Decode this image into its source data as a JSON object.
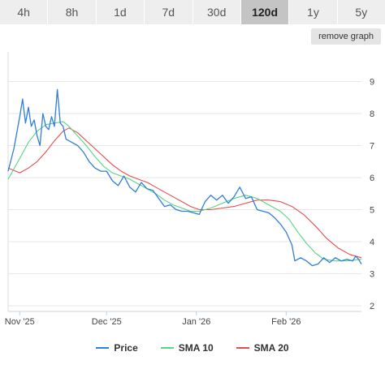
{
  "tabs": [
    {
      "label": "4h",
      "active": false
    },
    {
      "label": "8h",
      "active": false
    },
    {
      "label": "1d",
      "active": false
    },
    {
      "label": "7d",
      "active": false
    },
    {
      "label": "30d",
      "active": false
    },
    {
      "label": "120d",
      "active": true
    },
    {
      "label": "1y",
      "active": false
    },
    {
      "label": "5y",
      "active": false
    }
  ],
  "remove_button_label": "remove graph",
  "legend": [
    {
      "name": "Price",
      "color": "#2f7ed8"
    },
    {
      "name": "SMA 10",
      "color": "#59d486"
    },
    {
      "name": "SMA 20",
      "color": "#e84b4b"
    }
  ],
  "chart_data": {
    "type": "line",
    "title": "",
    "xlabel": "",
    "ylabel": "",
    "x_ticks": [
      "Nov '25",
      "Dec '25",
      "Jan '26",
      "Feb '26"
    ],
    "y_ticks": [
      2,
      3,
      4,
      5,
      6,
      7,
      8,
      9
    ],
    "ylim": [
      2,
      9
    ],
    "xlim": [
      "2025-10-28",
      "2026-02-27"
    ],
    "grid": true,
    "y_axis_side": "right",
    "legend_position": "bottom",
    "series": [
      {
        "name": "Price",
        "color": "#2f7ed8",
        "points": [
          [
            "2025-10-28",
            6.2
          ],
          [
            "2025-10-30",
            6.9
          ],
          [
            "2025-11-01",
            7.9
          ],
          [
            "2025-11-02",
            8.45
          ],
          [
            "2025-11-03",
            7.7
          ],
          [
            "2025-11-04",
            8.2
          ],
          [
            "2025-11-05",
            7.6
          ],
          [
            "2025-11-06",
            7.8
          ],
          [
            "2025-11-07",
            7.3
          ],
          [
            "2025-11-08",
            7.0
          ],
          [
            "2025-11-09",
            8.0
          ],
          [
            "2025-11-10",
            7.6
          ],
          [
            "2025-11-11",
            7.5
          ],
          [
            "2025-11-12",
            7.9
          ],
          [
            "2025-11-13",
            7.6
          ],
          [
            "2025-11-14",
            8.75
          ],
          [
            "2025-11-15",
            7.7
          ],
          [
            "2025-11-16",
            7.6
          ],
          [
            "2025-11-17",
            7.2
          ],
          [
            "2025-11-19",
            7.1
          ],
          [
            "2025-11-21",
            7.0
          ],
          [
            "2025-11-23",
            6.8
          ],
          [
            "2025-11-25",
            6.5
          ],
          [
            "2025-11-27",
            6.3
          ],
          [
            "2025-11-29",
            6.2
          ],
          [
            "2025-12-01",
            6.2
          ],
          [
            "2025-12-03",
            5.9
          ],
          [
            "2025-12-05",
            5.75
          ],
          [
            "2025-12-07",
            6.05
          ],
          [
            "2025-12-09",
            5.7
          ],
          [
            "2025-12-11",
            5.55
          ],
          [
            "2025-12-13",
            5.85
          ],
          [
            "2025-12-15",
            5.65
          ],
          [
            "2025-12-17",
            5.6
          ],
          [
            "2025-12-19",
            5.35
          ],
          [
            "2025-12-21",
            5.1
          ],
          [
            "2025-12-23",
            5.15
          ],
          [
            "2025-12-25",
            5.0
          ],
          [
            "2025-12-27",
            4.95
          ],
          [
            "2025-12-29",
            4.95
          ],
          [
            "2025-12-31",
            4.9
          ],
          [
            "2026-01-02",
            4.85
          ],
          [
            "2026-01-04",
            5.25
          ],
          [
            "2026-01-06",
            5.45
          ],
          [
            "2026-01-08",
            5.3
          ],
          [
            "2026-01-10",
            5.45
          ],
          [
            "2026-01-12",
            5.2
          ],
          [
            "2026-01-14",
            5.4
          ],
          [
            "2026-01-16",
            5.7
          ],
          [
            "2026-01-18",
            5.35
          ],
          [
            "2026-01-20",
            5.4
          ],
          [
            "2026-01-22",
            5.0
          ],
          [
            "2026-01-24",
            4.95
          ],
          [
            "2026-01-26",
            4.9
          ],
          [
            "2026-01-28",
            4.75
          ],
          [
            "2026-01-30",
            4.55
          ],
          [
            "2026-02-01",
            4.3
          ],
          [
            "2026-02-03",
            3.9
          ],
          [
            "2026-02-04",
            3.4
          ],
          [
            "2026-02-06",
            3.5
          ],
          [
            "2026-02-08",
            3.4
          ],
          [
            "2026-02-10",
            3.25
          ],
          [
            "2026-02-12",
            3.3
          ],
          [
            "2026-02-14",
            3.5
          ],
          [
            "2026-02-16",
            3.35
          ],
          [
            "2026-02-18",
            3.5
          ],
          [
            "2026-02-20",
            3.4
          ],
          [
            "2026-02-22",
            3.45
          ],
          [
            "2026-02-24",
            3.4
          ],
          [
            "2026-02-25",
            3.55
          ],
          [
            "2026-02-26",
            3.45
          ],
          [
            "2026-02-27",
            3.3
          ]
        ]
      },
      {
        "name": "SMA 10",
        "color": "#59d486",
        "points": [
          [
            "2025-10-28",
            5.95
          ],
          [
            "2025-11-01",
            6.6
          ],
          [
            "2025-11-04",
            7.1
          ],
          [
            "2025-11-07",
            7.45
          ],
          [
            "2025-11-10",
            7.65
          ],
          [
            "2025-11-13",
            7.7
          ],
          [
            "2025-11-16",
            7.75
          ],
          [
            "2025-11-18",
            7.6
          ],
          [
            "2025-11-21",
            7.3
          ],
          [
            "2025-11-24",
            7.0
          ],
          [
            "2025-11-27",
            6.65
          ],
          [
            "2025-11-30",
            6.35
          ],
          [
            "2025-12-03",
            6.15
          ],
          [
            "2025-12-06",
            6.05
          ],
          [
            "2025-12-09",
            5.95
          ],
          [
            "2025-12-12",
            5.8
          ],
          [
            "2025-12-15",
            5.65
          ],
          [
            "2025-12-18",
            5.5
          ],
          [
            "2025-12-21",
            5.3
          ],
          [
            "2025-12-24",
            5.15
          ],
          [
            "2025-12-27",
            5.05
          ],
          [
            "2025-12-30",
            4.95
          ],
          [
            "2026-01-02",
            4.95
          ],
          [
            "2026-01-06",
            5.05
          ],
          [
            "2026-01-10",
            5.2
          ],
          [
            "2026-01-14",
            5.35
          ],
          [
            "2026-01-18",
            5.45
          ],
          [
            "2026-01-22",
            5.35
          ],
          [
            "2026-01-26",
            5.15
          ],
          [
            "2026-01-30",
            4.95
          ],
          [
            "2026-02-02",
            4.7
          ],
          [
            "2026-02-05",
            4.3
          ],
          [
            "2026-02-08",
            3.95
          ],
          [
            "2026-02-11",
            3.65
          ],
          [
            "2026-02-14",
            3.45
          ],
          [
            "2026-02-18",
            3.4
          ],
          [
            "2026-02-22",
            3.4
          ],
          [
            "2026-02-27",
            3.45
          ]
        ]
      },
      {
        "name": "SMA 20",
        "color": "#e84b4b",
        "points": [
          [
            "2025-10-28",
            6.3
          ],
          [
            "2025-11-01",
            6.15
          ],
          [
            "2025-11-04",
            6.3
          ],
          [
            "2025-11-07",
            6.5
          ],
          [
            "2025-11-10",
            6.8
          ],
          [
            "2025-11-13",
            7.15
          ],
          [
            "2025-11-16",
            7.45
          ],
          [
            "2025-11-18",
            7.55
          ],
          [
            "2025-11-21",
            7.4
          ],
          [
            "2025-11-24",
            7.15
          ],
          [
            "2025-11-27",
            6.9
          ],
          [
            "2025-11-30",
            6.65
          ],
          [
            "2025-12-03",
            6.4
          ],
          [
            "2025-12-06",
            6.2
          ],
          [
            "2025-12-09",
            6.05
          ],
          [
            "2025-12-12",
            5.95
          ],
          [
            "2025-12-15",
            5.85
          ],
          [
            "2025-12-18",
            5.7
          ],
          [
            "2025-12-21",
            5.55
          ],
          [
            "2025-12-24",
            5.4
          ],
          [
            "2025-12-27",
            5.25
          ],
          [
            "2025-12-30",
            5.1
          ],
          [
            "2026-01-02",
            5.0
          ],
          [
            "2026-01-06",
            5.0
          ],
          [
            "2026-01-10",
            5.05
          ],
          [
            "2026-01-14",
            5.1
          ],
          [
            "2026-01-18",
            5.2
          ],
          [
            "2026-01-22",
            5.3
          ],
          [
            "2026-01-26",
            5.3
          ],
          [
            "2026-01-30",
            5.25
          ],
          [
            "2026-02-03",
            5.1
          ],
          [
            "2026-02-07",
            4.85
          ],
          [
            "2026-02-11",
            4.5
          ],
          [
            "2026-02-15",
            4.1
          ],
          [
            "2026-02-19",
            3.8
          ],
          [
            "2026-02-23",
            3.6
          ],
          [
            "2026-02-27",
            3.5
          ]
        ]
      }
    ]
  }
}
